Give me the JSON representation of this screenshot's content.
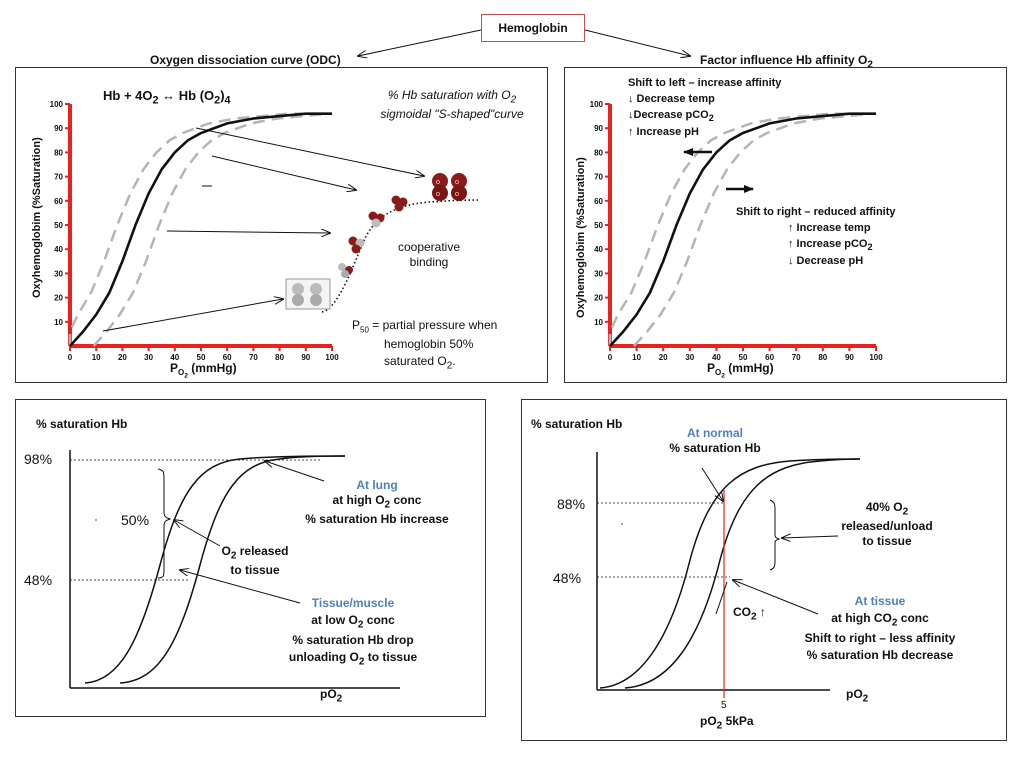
{
  "header": {
    "title": "Hemoglobin",
    "left_heading": "Oxygen dissociation curve (ODC)",
    "right_heading_prefix": "Factor influence Hb affinity O",
    "right_heading_sub": "2"
  },
  "panel_odc": {
    "equation_a": "Hb + 4O",
    "equation_sub1": "2",
    "equation_arrow": " ↔ ",
    "equation_b": "Hb (O",
    "equation_sub2": "2",
    "equation_c": ")",
    "equation_sub3": "4",
    "note_line1": "% Hb saturation with O",
    "note_line1_sub": "2",
    "note_line2": "sigmoidal \"S-shaped\"curve",
    "cooperative_line1": "cooperative",
    "cooperative_line2": "binding",
    "p50_prefix": "P",
    "p50_sub": "50",
    "p50_line1": " = partial pressure when",
    "p50_line2": "hemoglobin 50%",
    "p50_line3": "saturated O",
    "p50_line3_sub": "2",
    "p50_line3_end": ".",
    "y_axis_label": "Oxyhemoglobim (%Saturation)",
    "x_axis_label_p": "P",
    "x_axis_label_sub": "O",
    "x_axis_label_sub2": "2",
    "x_axis_label_rest": " (mmHg)"
  },
  "panel_affinity": {
    "left_title": "Shift to left – increase affinity",
    "left_items": [
      "↓ Decrease temp",
      "↓Decrease pCO",
      "↑ Increase pH"
    ],
    "left_item2_sub": "2",
    "right_title": "Shift to right – reduced affinity",
    "right_items": [
      "↑ Increase temp",
      "↑ Increase pCO",
      "↓ Decrease pH"
    ],
    "right_item2_sub": "2",
    "y_axis_label": "Oxyhemoglobim (%Saturation)"
  },
  "panel_lung": {
    "y_title": "% saturation Hb",
    "tick_98": "98%",
    "tick_50": "50%",
    "tick_48": "48%",
    "at_lung": "At lung",
    "at_lung_line2a": "at high O",
    "at_lung_line2_sub": "2",
    "at_lung_line2b": " conc",
    "at_lung_line3": "% saturation Hb increase",
    "released_a": "O",
    "released_sub": "2",
    "released_b": " released",
    "released_line2": "to tissue",
    "tissue": "Tissue/muscle",
    "tissue_line2a": "at low O",
    "tissue_line2_sub": "2",
    "tissue_line2b": " conc",
    "tissue_line3": "% saturation Hb drop",
    "tissue_line4a": "unloading O",
    "tissue_line4_sub": "2",
    "tissue_line4b": " to tissue",
    "x_label": "pO",
    "x_label_sub": "2"
  },
  "panel_tissue": {
    "y_title": "% saturation Hb",
    "at_normal": "At normal",
    "at_normal_line2": "% saturation Hb",
    "tick_88": "88%",
    "tick_48": "48%",
    "released_a": "40% O",
    "released_sub": "2",
    "released_line2": "released/unload",
    "released_line3": "to tissue",
    "co2_a": "CO",
    "co2_sub": "2",
    "co2_b": " ↑",
    "at_tissue": "At tissue",
    "at_tissue_line2a": "at high CO",
    "at_tissue_line2_sub": "2",
    "at_tissue_line2b": " conc",
    "at_tissue_line3": "Shift to right – less affinity",
    "at_tissue_line4": "% saturation Hb decrease",
    "x_label": "pO",
    "x_label_sub": "2",
    "x_tick": "5",
    "x_bottom_a": "pO",
    "x_bottom_sub": "2",
    "x_bottom_b": " 5kPa"
  },
  "chart_data": [
    {
      "type": "line",
      "x_ticks": [
        0,
        10,
        20,
        30,
        40,
        50,
        60,
        70,
        80,
        90,
        100
      ],
      "y_ticks": [
        10,
        20,
        30,
        40,
        50,
        60,
        70,
        80,
        90,
        100
      ],
      "xlim": [
        0,
        100
      ],
      "ylim": [
        0,
        100
      ],
      "series": [
        {
          "x": [
            0,
            5,
            10,
            15,
            20,
            25,
            30,
            35,
            40,
            45,
            50,
            60,
            70,
            80,
            90,
            100
          ],
          "y": [
            0,
            6,
            13,
            22,
            35,
            50,
            63,
            73,
            80,
            85,
            88,
            92,
            94,
            95,
            96,
            96
          ]
        }
      ],
      "colors": {
        "axis": "#e8221f",
        "curve": "#111111",
        "shifted": "#b5b5b5"
      }
    },
    {
      "type": "line",
      "x_ticks": [
        0,
        10,
        20,
        30,
        40,
        50,
        60,
        70,
        80,
        90,
        100
      ],
      "y_ticks": [
        10,
        20,
        30,
        40,
        50,
        60,
        70,
        80,
        90,
        100
      ],
      "xlim": [
        0,
        100
      ],
      "ylim": [
        0,
        100
      ],
      "series": [
        {
          "x": [
            0,
            5,
            10,
            15,
            20,
            25,
            30,
            35,
            40,
            45,
            50,
            60,
            70,
            80,
            90,
            100
          ],
          "y": [
            0,
            6,
            13,
            22,
            35,
            50,
            63,
            73,
            80,
            85,
            88,
            92,
            94,
            95,
            96,
            96
          ]
        }
      ],
      "colors": {
        "axis": "#e8221f",
        "curve": "#111111",
        "shifted": "#b5b5b5"
      }
    }
  ]
}
